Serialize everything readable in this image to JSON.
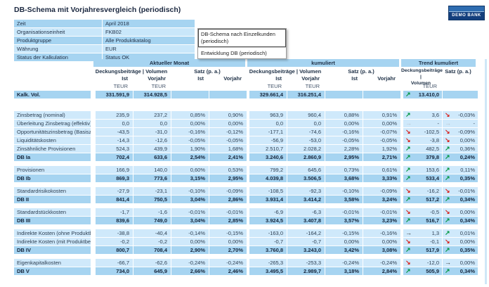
{
  "page": {
    "title": "DB-Schema mit Vorjahresvergleich (periodisch)",
    "logo_text": "DEMO BANK"
  },
  "filters": {
    "rows": [
      {
        "label": "Zeit",
        "value": "April 2018"
      },
      {
        "label": "Organisationseinheit",
        "value": "FKB02"
      },
      {
        "label": "Produktgruppe",
        "value": "Alle Produktkatalog"
      },
      {
        "label": "Währung",
        "value": "EUR"
      },
      {
        "label": "Status der Kalkulation",
        "value": "Status OK"
      }
    ]
  },
  "menu": {
    "items": [
      {
        "label": "DB-Schema nach Einzelkunden (periodisch)",
        "selected": true
      },
      {
        "label": "Entwicklung DB (periodisch)",
        "selected": false
      }
    ]
  },
  "table": {
    "group_current": "Aktueller Monat",
    "group_cumulative": "kumuliert",
    "group_trend": "Trend kumuliert",
    "h_db_volume": "Deckungsbeiträge | Volumen",
    "h_db_volume_trend_line1": "Deckungsbeiträge |",
    "h_db_volume_trend_line2": "Volumen",
    "h_rate": "Satz (p. a.)",
    "h_ist": "Ist",
    "h_vorjahr": "Vorjahr",
    "h_teur": "TEUR",
    "kalkvol": {
      "label": "Kalk. Vol.",
      "monat": [
        "331.591,9",
        "314.928,5",
        "",
        ""
      ],
      "kum": [
        "329.661,4",
        "316.251,4",
        "",
        ""
      ],
      "trend": [
        "up",
        "13.410,0",
        "",
        ""
      ]
    },
    "rows": [
      {
        "label": "Zinsbetrag (nominal)",
        "total": false,
        "gap": false,
        "monat": [
          "235,9",
          "237,2",
          "0,85%",
          "0,90%"
        ],
        "kum": [
          "963,9",
          "960,4",
          "0,88%",
          "0,91%"
        ],
        "trend": [
          "up",
          "3,6",
          "down",
          "-0,03%"
        ]
      },
      {
        "label": "Überleitung Zinsbetrag (effektiv)",
        "total": false,
        "gap": false,
        "monat": [
          "0,0",
          "0,0",
          "0,00%",
          "0,00%"
        ],
        "kum": [
          "0,0",
          "0,0",
          "0,00%",
          "0,00%"
        ],
        "trend": [
          "none",
          "-",
          "none",
          "-"
        ]
      },
      {
        "label": "Opportunitätszinsbetrag (Basiszins)",
        "total": false,
        "gap": false,
        "monat": [
          "-43,5",
          "-31,0",
          "-0,16%",
          "-0,12%"
        ],
        "kum": [
          "-177,1",
          "-74,6",
          "-0,16%",
          "-0,07%"
        ],
        "trend": [
          "down",
          "-102,5",
          "down",
          "-0,09%"
        ]
      },
      {
        "label": "Liquiditätskosten",
        "total": false,
        "gap": false,
        "monat": [
          "-14,3",
          "-12,6",
          "-0,05%",
          "-0,05%"
        ],
        "kum": [
          "-56,9",
          "-53,0",
          "-0,05%",
          "-0,05%"
        ],
        "trend": [
          "down",
          "-3,8",
          "down",
          "0,00%"
        ]
      },
      {
        "label": "Zinsähnliche Provisionen",
        "total": false,
        "gap": false,
        "monat": [
          "524,3",
          "439,9",
          "1,90%",
          "1,68%"
        ],
        "kum": [
          "2.510,7",
          "2.028,2",
          "2,28%",
          "1,92%"
        ],
        "trend": [
          "up",
          "482,5",
          "up",
          "0,36%"
        ]
      },
      {
        "label": "DB Ia",
        "total": true,
        "gap": false,
        "monat": [
          "702,4",
          "633,6",
          "2,54%",
          "2,41%"
        ],
        "kum": [
          "3.240,6",
          "2.860,9",
          "2,95%",
          "2,71%"
        ],
        "trend": [
          "up",
          "379,8",
          "up",
          "0,24%"
        ]
      },
      {
        "label": "Provisionen",
        "total": false,
        "gap": true,
        "monat": [
          "166,9",
          "140,0",
          "0,60%",
          "0,53%"
        ],
        "kum": [
          "799,2",
          "645,6",
          "0,73%",
          "0,61%"
        ],
        "trend": [
          "up",
          "153,6",
          "up",
          "0,11%"
        ]
      },
      {
        "label": "DB Ib",
        "total": true,
        "gap": false,
        "monat": [
          "869,3",
          "773,6",
          "3,15%",
          "2,95%"
        ],
        "kum": [
          "4.039,8",
          "3.506,5",
          "3,68%",
          "3,33%"
        ],
        "trend": [
          "up",
          "533,4",
          "up",
          "0,35%"
        ]
      },
      {
        "label": "Standardrisikokosten",
        "total": false,
        "gap": true,
        "monat": [
          "-27,9",
          "-23,1",
          "-0,10%",
          "-0,09%"
        ],
        "kum": [
          "-108,5",
          "-92,3",
          "-0,10%",
          "-0,09%"
        ],
        "trend": [
          "down",
          "-16,2",
          "down",
          "-0,01%"
        ]
      },
      {
        "label": "DB II",
        "total": true,
        "gap": false,
        "monat": [
          "841,4",
          "750,5",
          "3,04%",
          "2,86%"
        ],
        "kum": [
          "3.931,4",
          "3.414,2",
          "3,58%",
          "3,24%"
        ],
        "trend": [
          "up",
          "517,2",
          "up",
          "0,34%"
        ]
      },
      {
        "label": "Standardstückkosten",
        "total": false,
        "gap": true,
        "monat": [
          "-1,7",
          "-1,6",
          "-0,01%",
          "-0,01%"
        ],
        "kum": [
          "-6,9",
          "-6,3",
          "-0,01%",
          "-0,01%"
        ],
        "trend": [
          "down",
          "-0,5",
          "down",
          "0,00%"
        ]
      },
      {
        "label": "DB III",
        "total": true,
        "gap": false,
        "monat": [
          "839,6",
          "749,0",
          "3,04%",
          "2,85%"
        ],
        "kum": [
          "3.924,5",
          "3.407,8",
          "3,57%",
          "3,23%"
        ],
        "trend": [
          "up",
          "516,7",
          "up",
          "0,34%"
        ]
      },
      {
        "label": "Indirekte Kosten (ohne Produktbezug)",
        "total": false,
        "gap": true,
        "monat": [
          "-38,8",
          "-40,4",
          "-0,14%",
          "-0,15%"
        ],
        "kum": [
          "-163,0",
          "-164,2",
          "-0,15%",
          "-0,16%"
        ],
        "trend": [
          "flat",
          "1,3",
          "up",
          "0,01%"
        ]
      },
      {
        "label": "Indirekte Kosten (mit Produktbezug)",
        "total": false,
        "gap": false,
        "monat": [
          "-0,2",
          "-0,2",
          "0,00%",
          "0,00%"
        ],
        "kum": [
          "-0,7",
          "-0,7",
          "0,00%",
          "0,00%"
        ],
        "trend": [
          "down",
          "-0,1",
          "down",
          "0,00%"
        ]
      },
      {
        "label": "DB IV",
        "total": true,
        "gap": false,
        "monat": [
          "800,7",
          "708,4",
          "2,90%",
          "2,70%"
        ],
        "kum": [
          "3.760,8",
          "3.243,0",
          "3,42%",
          "3,08%"
        ],
        "trend": [
          "up",
          "517,9",
          "up",
          "0,35%"
        ]
      },
      {
        "label": "Eigenkapitalkosten",
        "total": false,
        "gap": true,
        "monat": [
          "-66,7",
          "-62,6",
          "-0,24%",
          "-0,24%"
        ],
        "kum": [
          "-265,3",
          "-253,3",
          "-0,24%",
          "-0,24%"
        ],
        "trend": [
          "down",
          "-12,0",
          "flat",
          "0,00%"
        ]
      },
      {
        "label": "DB V",
        "total": true,
        "gap": false,
        "monat": [
          "734,0",
          "645,9",
          "2,66%",
          "2,46%"
        ],
        "kum": [
          "3.495,5",
          "2.989,7",
          "3,18%",
          "2,84%"
        ],
        "trend": [
          "up",
          "505,9",
          "up",
          "0,34%"
        ]
      }
    ]
  },
  "colors": {
    "trend_up": "#00963f",
    "trend_down": "#d9231d",
    "trend_flat": "#333333",
    "trend_none": "#b9c2ca",
    "row_light": "#cfe9fb",
    "row_medium": "#a6d4f1",
    "logo_dark": "#143f7d"
  }
}
